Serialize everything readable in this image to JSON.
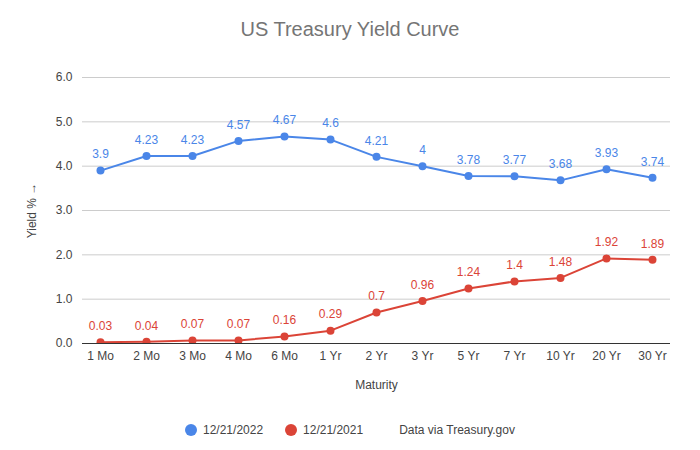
{
  "chart_data": {
    "type": "line",
    "title": "US Treasury Yield Curve",
    "x_label": "Maturity",
    "y_label": "Yield %",
    "caption": "Data via Treasury.gov",
    "categories": [
      "1 Mo",
      "2 Mo",
      "3 Mo",
      "4 Mo",
      "6 Mo",
      "1 Yr",
      "2 Yr",
      "3 Yr",
      "5 Yr",
      "7 Yr",
      "10 Yr",
      "20 Yr",
      "30 Yr"
    ],
    "series": [
      {
        "name": "12/21/2022",
        "color": "#4a86e8",
        "values": [
          3.9,
          4.23,
          4.23,
          4.57,
          4.67,
          4.6,
          4.21,
          4,
          3.78,
          3.77,
          3.68,
          3.93,
          3.74
        ]
      },
      {
        "name": "12/21/2021",
        "color": "#db4437",
        "values": [
          0.03,
          0.04,
          0.07,
          0.07,
          0.16,
          0.29,
          0.7,
          0.96,
          1.24,
          1.4,
          1.48,
          1.92,
          1.89
        ]
      }
    ],
    "ylim": [
      0,
      6
    ],
    "yticks": [
      0,
      1,
      2,
      3,
      4,
      5,
      6
    ],
    "grid": true,
    "legend": "bottom",
    "data_labels": true,
    "marker": "circle",
    "line_style": "solid"
  }
}
